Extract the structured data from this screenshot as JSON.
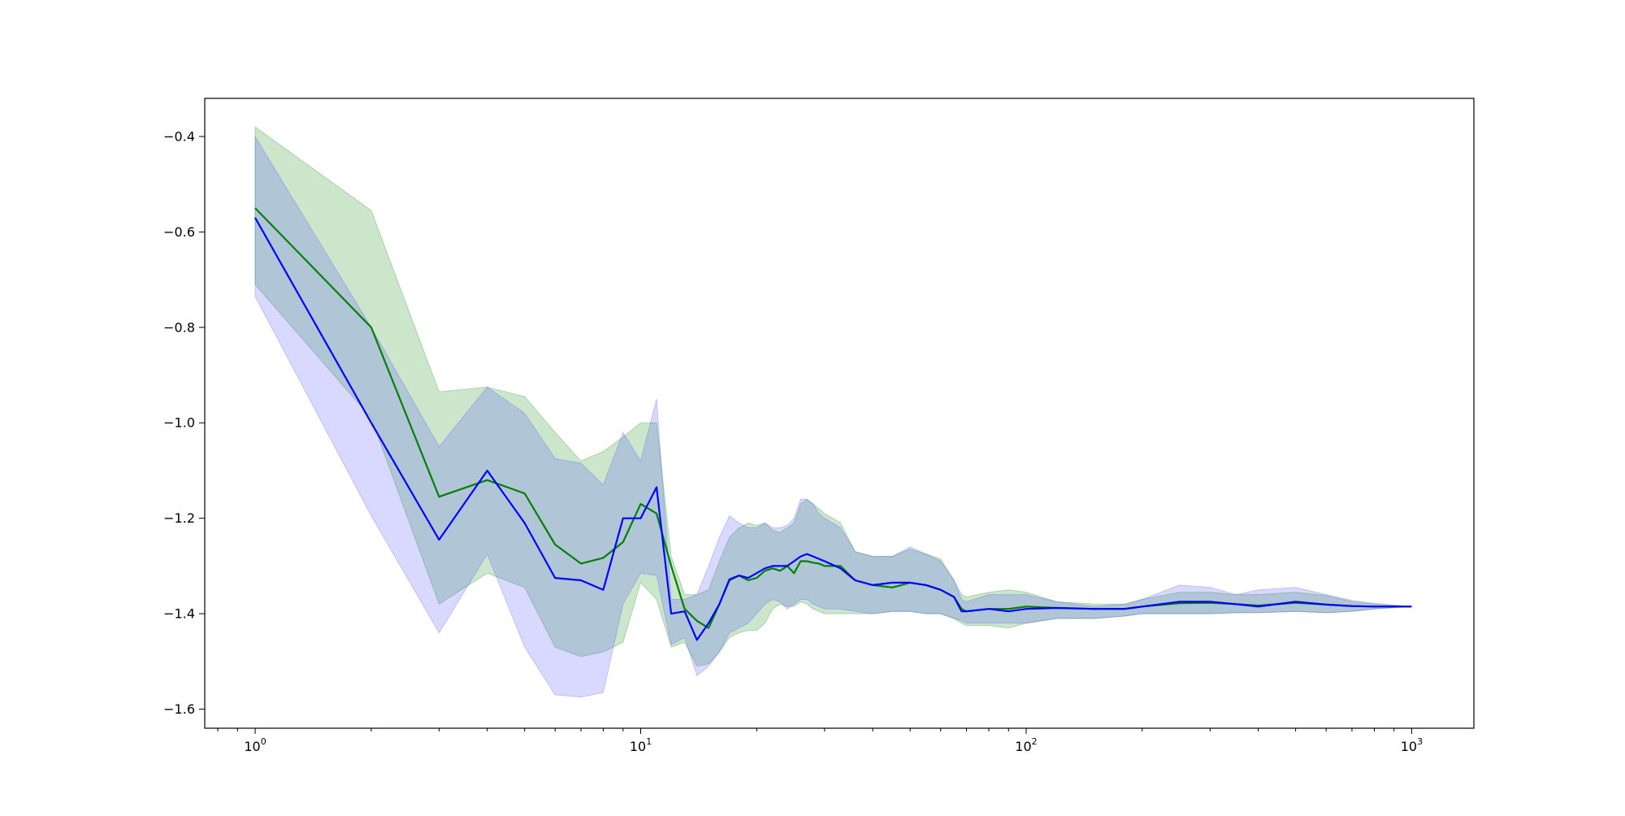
{
  "chart_data": {
    "type": "line",
    "title": "",
    "xlabel": "",
    "ylabel": "",
    "xscale": "log",
    "xlim": [
      0.74,
      1450
    ],
    "ylim": [
      -1.64,
      -0.32
    ],
    "grid": false,
    "x_ticks": [
      {
        "value": 1,
        "base": "10",
        "exp": "0"
      },
      {
        "value": 10,
        "base": "10",
        "exp": "1"
      },
      {
        "value": 100,
        "base": "10",
        "exp": "2"
      },
      {
        "value": 1000,
        "base": "10",
        "exp": "3"
      }
    ],
    "y_ticks": [
      {
        "value": -0.4,
        "label": "−0.4"
      },
      {
        "value": -0.6,
        "label": "−0.6"
      },
      {
        "value": -0.8,
        "label": "−0.8"
      },
      {
        "value": -1.0,
        "label": "−1.0"
      },
      {
        "value": -1.2,
        "label": "−1.2"
      },
      {
        "value": -1.4,
        "label": "−1.4"
      },
      {
        "value": -1.6,
        "label": "−1.6"
      }
    ],
    "series": [
      {
        "color": "#008000",
        "band_color": "#008000",
        "x": [
          1,
          2,
          3,
          4,
          5,
          6,
          7,
          8,
          9,
          10,
          11,
          12,
          13,
          14,
          15,
          16,
          17,
          18,
          19,
          20,
          21,
          22,
          23,
          24,
          25,
          26,
          27,
          28,
          29,
          30,
          33,
          36,
          40,
          45,
          50,
          55,
          60,
          65,
          68,
          70,
          80,
          90,
          100,
          120,
          150,
          180,
          200,
          250,
          300,
          350,
          400,
          500,
          600,
          700,
          800,
          1000
        ],
        "y": [
          -0.55,
          -0.8,
          -1.155,
          -1.12,
          -1.148,
          -1.255,
          -1.295,
          -1.283,
          -1.25,
          -1.17,
          -1.19,
          -1.3,
          -1.39,
          -1.415,
          -1.43,
          -1.38,
          -1.33,
          -1.32,
          -1.33,
          -1.325,
          -1.31,
          -1.305,
          -1.31,
          -1.3,
          -1.315,
          -1.29,
          -1.29,
          -1.293,
          -1.295,
          -1.3,
          -1.3,
          -1.33,
          -1.34,
          -1.345,
          -1.335,
          -1.34,
          -1.35,
          -1.365,
          -1.39,
          -1.395,
          -1.39,
          -1.39,
          -1.385,
          -1.388,
          -1.39,
          -1.39,
          -1.385,
          -1.378,
          -1.377,
          -1.38,
          -1.383,
          -1.377,
          -1.381,
          -1.384,
          -1.385,
          -1.385
        ],
        "upper": [
          -0.38,
          -0.555,
          -0.935,
          -0.925,
          -0.945,
          -1.02,
          -1.08,
          -1.06,
          -1.03,
          -1.0,
          -1.0,
          -1.28,
          -1.36,
          -1.36,
          -1.35,
          -1.29,
          -1.24,
          -1.22,
          -1.21,
          -1.215,
          -1.21,
          -1.225,
          -1.23,
          -1.22,
          -1.21,
          -1.17,
          -1.16,
          -1.17,
          -1.18,
          -1.19,
          -1.21,
          -1.27,
          -1.28,
          -1.28,
          -1.265,
          -1.275,
          -1.285,
          -1.33,
          -1.36,
          -1.365,
          -1.355,
          -1.35,
          -1.355,
          -1.375,
          -1.38,
          -1.38,
          -1.37,
          -1.355,
          -1.355,
          -1.36,
          -1.36,
          -1.355,
          -1.362,
          -1.375,
          -1.38,
          -1.385
        ],
        "lower": [
          -0.71,
          -0.99,
          -1.38,
          -1.315,
          -1.345,
          -1.47,
          -1.49,
          -1.48,
          -1.46,
          -1.335,
          -1.37,
          -1.47,
          -1.46,
          -1.51,
          -1.505,
          -1.48,
          -1.45,
          -1.44,
          -1.435,
          -1.435,
          -1.42,
          -1.39,
          -1.38,
          -1.385,
          -1.385,
          -1.375,
          -1.38,
          -1.39,
          -1.395,
          -1.4,
          -1.4,
          -1.4,
          -1.4,
          -1.395,
          -1.395,
          -1.4,
          -1.4,
          -1.41,
          -1.42,
          -1.425,
          -1.425,
          -1.43,
          -1.42,
          -1.41,
          -1.41,
          -1.405,
          -1.4,
          -1.4,
          -1.4,
          -1.398,
          -1.398,
          -1.395,
          -1.398,
          -1.395,
          -1.39,
          -1.385
        ]
      },
      {
        "color": "#0000ff",
        "band_color": "#4040ff",
        "x": [
          1,
          2,
          3,
          4,
          5,
          6,
          7,
          8,
          9,
          10,
          11,
          12,
          13,
          14,
          15,
          16,
          17,
          18,
          19,
          20,
          21,
          22,
          23,
          24,
          25,
          26,
          27,
          28,
          29,
          30,
          33,
          36,
          40,
          45,
          50,
          55,
          60,
          65,
          68,
          70,
          80,
          90,
          100,
          120,
          150,
          180,
          200,
          250,
          300,
          350,
          400,
          500,
          600,
          700,
          800,
          1000
        ],
        "y": [
          -0.57,
          -1.0,
          -1.245,
          -1.1,
          -1.21,
          -1.325,
          -1.33,
          -1.35,
          -1.2,
          -1.2,
          -1.135,
          -1.4,
          -1.395,
          -1.455,
          -1.42,
          -1.38,
          -1.328,
          -1.32,
          -1.325,
          -1.315,
          -1.305,
          -1.3,
          -1.3,
          -1.3,
          -1.29,
          -1.28,
          -1.275,
          -1.28,
          -1.285,
          -1.29,
          -1.305,
          -1.33,
          -1.34,
          -1.335,
          -1.335,
          -1.34,
          -1.35,
          -1.365,
          -1.395,
          -1.395,
          -1.39,
          -1.395,
          -1.39,
          -1.388,
          -1.39,
          -1.39,
          -1.385,
          -1.375,
          -1.375,
          -1.38,
          -1.385,
          -1.375,
          -1.381,
          -1.384,
          -1.385,
          -1.385
        ],
        "upper": [
          -0.4,
          -0.8,
          -1.05,
          -0.925,
          -0.98,
          -1.075,
          -1.085,
          -1.13,
          -1.02,
          -1.08,
          -0.95,
          -1.37,
          -1.37,
          -1.36,
          -1.3,
          -1.24,
          -1.195,
          -1.21,
          -1.22,
          -1.22,
          -1.21,
          -1.22,
          -1.22,
          -1.215,
          -1.2,
          -1.16,
          -1.16,
          -1.17,
          -1.19,
          -1.2,
          -1.22,
          -1.27,
          -1.28,
          -1.28,
          -1.26,
          -1.275,
          -1.29,
          -1.33,
          -1.37,
          -1.375,
          -1.36,
          -1.36,
          -1.36,
          -1.375,
          -1.385,
          -1.38,
          -1.37,
          -1.34,
          -1.345,
          -1.36,
          -1.35,
          -1.345,
          -1.36,
          -1.372,
          -1.378,
          -1.385
        ],
        "lower": [
          -0.735,
          -1.195,
          -1.44,
          -1.275,
          -1.47,
          -1.57,
          -1.575,
          -1.565,
          -1.38,
          -1.315,
          -1.32,
          -1.465,
          -1.45,
          -1.53,
          -1.51,
          -1.48,
          -1.44,
          -1.43,
          -1.42,
          -1.4,
          -1.38,
          -1.37,
          -1.375,
          -1.39,
          -1.38,
          -1.37,
          -1.37,
          -1.38,
          -1.385,
          -1.39,
          -1.39,
          -1.395,
          -1.4,
          -1.395,
          -1.395,
          -1.4,
          -1.4,
          -1.41,
          -1.415,
          -1.42,
          -1.42,
          -1.42,
          -1.42,
          -1.41,
          -1.41,
          -1.405,
          -1.4,
          -1.4,
          -1.4,
          -1.398,
          -1.398,
          -1.395,
          -1.398,
          -1.395,
          -1.39,
          -1.385
        ]
      }
    ]
  }
}
